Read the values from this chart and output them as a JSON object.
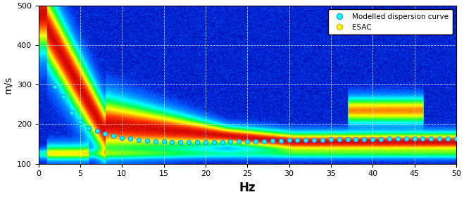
{
  "xlim": [
    0,
    50
  ],
  "ylim": [
    100,
    500
  ],
  "xlabel": "Hz",
  "ylabel": "m/s",
  "xlabel_fontsize": 12,
  "ylabel_fontsize": 10,
  "xticks": [
    0,
    5,
    10,
    15,
    20,
    25,
    30,
    35,
    40,
    45,
    50
  ],
  "yticks": [
    100,
    200,
    300,
    400,
    500
  ],
  "grid_color": "white",
  "grid_linestyle": "--",
  "legend_labels": [
    "Modelled dispersion curve",
    "ESAC"
  ],
  "legend_marker_colors": [
    "cyan",
    "yellow"
  ],
  "modelled_curve_x": [
    2.0,
    3.0,
    4.0,
    5.0,
    6.0,
    7.0,
    8.0,
    9.0,
    10.0,
    11.0,
    12.0,
    13.0,
    14.0,
    15.0,
    16.0,
    17.0,
    18.0,
    19.0,
    20.0,
    21.0,
    22.0,
    23.0,
    24.0,
    25.0,
    26.0,
    27.0,
    28.0,
    29.0,
    30.0,
    31.0,
    32.0,
    33.0,
    34.0,
    35.0,
    36.0,
    37.0,
    38.0,
    39.0,
    40.0,
    41.0,
    42.0,
    43.0,
    44.0,
    45.0,
    46.0,
    47.0,
    48.0,
    49.0,
    50.0
  ],
  "modelled_curve_y": [
    295,
    270,
    230,
    207,
    190,
    183,
    175,
    170,
    166,
    163,
    160,
    158,
    157,
    156,
    155,
    155,
    155,
    155,
    155,
    155,
    155,
    156,
    156,
    156,
    157,
    157,
    158,
    158,
    159,
    159,
    160,
    160,
    160,
    161,
    161,
    161,
    162,
    162,
    162,
    162,
    163,
    163,
    163,
    163,
    163,
    163,
    163,
    163,
    163
  ],
  "fig_width": 6.59,
  "fig_height": 2.8,
  "dpi": 100
}
